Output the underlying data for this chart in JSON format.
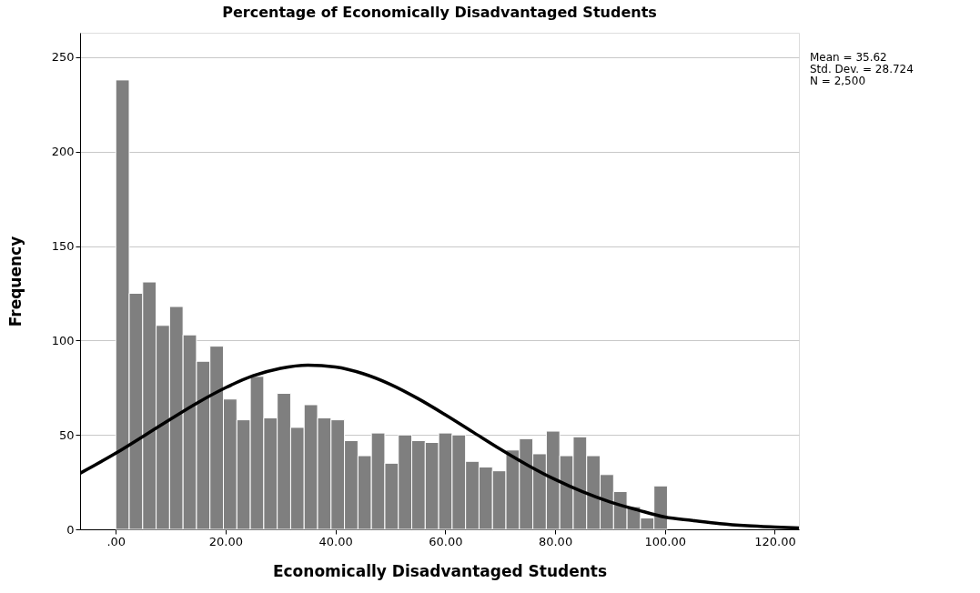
{
  "chart_data": {
    "type": "histogram",
    "title": "Percentage of Economically Disadvantaged Students",
    "xlabel": "Economically Disadvantaged Students",
    "ylabel": "Frequency",
    "bins": [
      0,
      2.45,
      4.9,
      7.35,
      9.8,
      12.25,
      14.7,
      17.15,
      19.6,
      22.05,
      24.5,
      26.95,
      29.4,
      31.85,
      34.3,
      36.75,
      39.2,
      41.65,
      44.1,
      46.55,
      49,
      51.45,
      53.9,
      56.35,
      58.8,
      61.25,
      63.7,
      66.15,
      68.6,
      71.05,
      73.5,
      75.95,
      78.4,
      80.85,
      83.3,
      85.75,
      88.2,
      90.65,
      93.1,
      95.55,
      98,
      100.45
    ],
    "values": [
      238,
      125,
      131,
      108,
      118,
      103,
      89,
      97,
      69,
      58,
      81,
      59,
      72,
      54,
      66,
      59,
      58,
      47,
      39,
      51,
      35,
      50,
      47,
      46,
      51,
      50,
      36,
      33,
      31,
      42,
      48,
      40,
      52,
      39,
      49,
      39,
      29,
      20,
      12,
      6,
      23
    ],
    "color": "#7f7f7f",
    "series": [
      {
        "type": "line",
        "color": "#000000",
        "x": [
          -6.5,
          0,
          5,
          10,
          15,
          20,
          25,
          30,
          35,
          40,
          45,
          50,
          55,
          60,
          65,
          70,
          75,
          80,
          85,
          90,
          95,
          100,
          105,
          110,
          115,
          120,
          124.4
        ],
        "values": [
          29.7,
          40.3,
          49.3,
          58.4,
          67.2,
          75.0,
          81.3,
          85.3,
          87.0,
          86.0,
          82.5,
          76.8,
          69.3,
          60.7,
          51.6,
          42.5,
          34.0,
          26.4,
          19.9,
          14.5,
          10.3,
          6.5,
          4.7,
          3.0,
          1.9,
          1.2,
          0.7
        ]
      }
    ],
    "annotations": [
      "Mean = 35.62",
      "Std. Dev. = 28.724",
      "N = 2,500"
    ],
    "xlim": [
      -6.5,
      124.4
    ],
    "ylim": [
      0,
      263
    ],
    "xticks": [
      {
        "value": 0,
        "label": ".00"
      },
      {
        "value": 20,
        "label": "20.00"
      },
      {
        "value": 40,
        "label": "40.00"
      },
      {
        "value": 60,
        "label": "60.00"
      },
      {
        "value": 80,
        "label": "80.00"
      },
      {
        "value": 100,
        "label": "100.00"
      },
      {
        "value": 120,
        "label": "120.00"
      }
    ],
    "yticks": [
      0,
      50,
      100,
      150,
      200,
      250
    ],
    "grid": "y"
  }
}
